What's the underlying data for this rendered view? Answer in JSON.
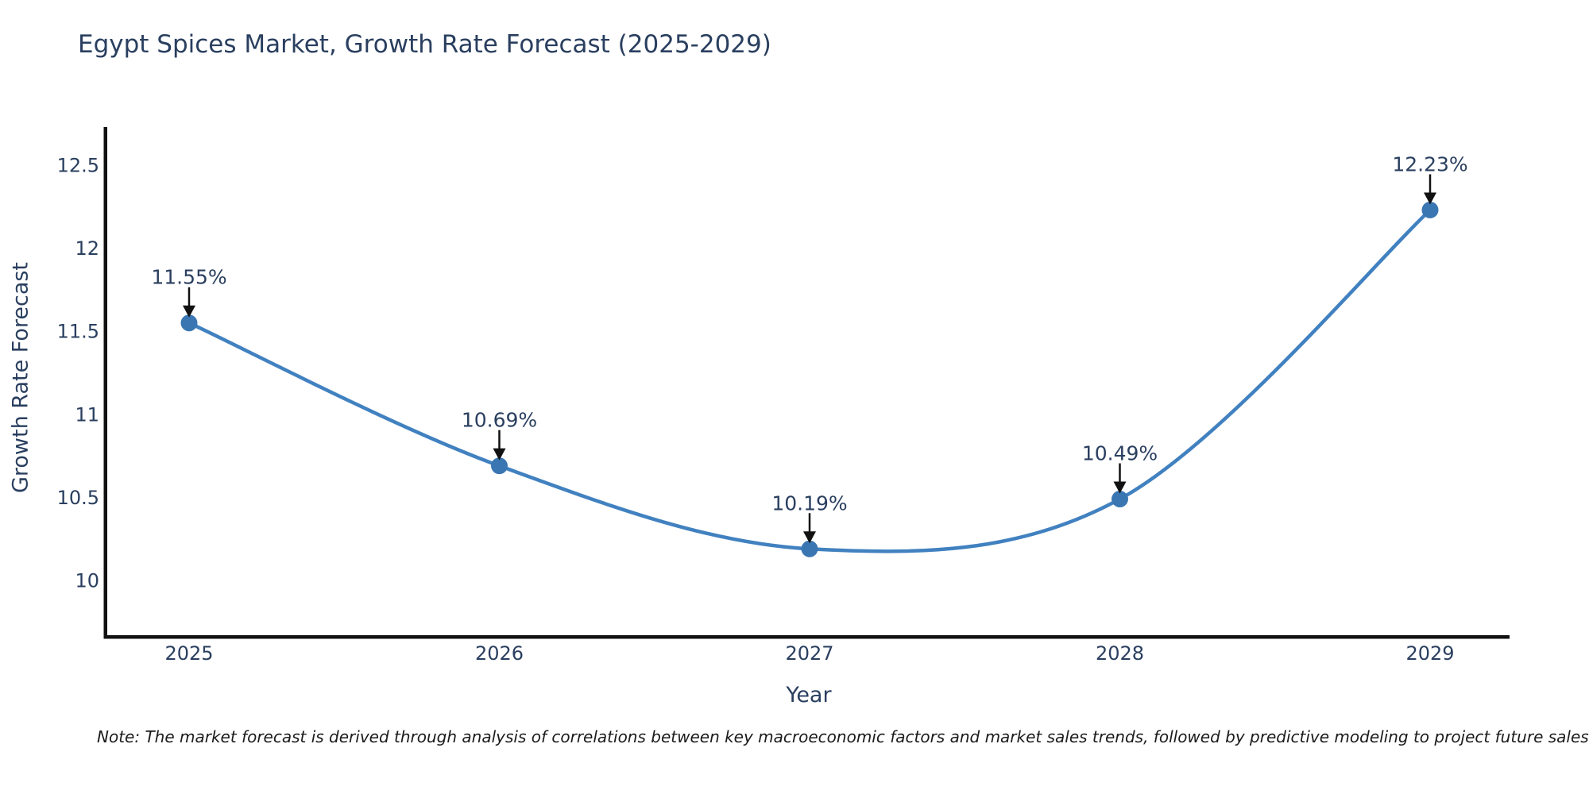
{
  "title": "Egypt Spices Market, Growth Rate Forecast (2025-2029)",
  "note": "Note: The market forecast is derived through analysis of correlations between key macroeconomic factors and market sales trends, followed by predictive modeling to project future sales.",
  "chart_data": {
    "type": "line",
    "line_shape": "spline",
    "title": "Egypt Spices Market, Growth Rate Forecast (2025-2029)",
    "xlabel": "Year",
    "ylabel": "Growth Rate Forecast",
    "x": [
      2025,
      2026,
      2027,
      2028,
      2029
    ],
    "values": [
      11.55,
      10.69,
      10.19,
      10.49,
      12.23
    ],
    "point_labels": [
      "11.55%",
      "10.69%",
      "10.19%",
      "10.49%",
      "12.23%"
    ],
    "x_tick_labels": [
      "2025",
      "2026",
      "2027",
      "2028",
      "2029"
    ],
    "y_tick_values": [
      12.5,
      12,
      11.5,
      11,
      10.5,
      10
    ],
    "y_tick_labels": [
      "12.5",
      "12",
      "11.5",
      "11",
      "10.5",
      "10"
    ],
    "ylim": [
      9.67,
      12.72
    ],
    "grid": false,
    "legend": "none",
    "markers": true,
    "annotation_arrows": true,
    "colors": {
      "line": "#4181c0",
      "marker": "#3a76b2",
      "axis": "#111111",
      "text": "#2a3f5f",
      "arrow": "#111111",
      "background": "#ffffff"
    }
  }
}
